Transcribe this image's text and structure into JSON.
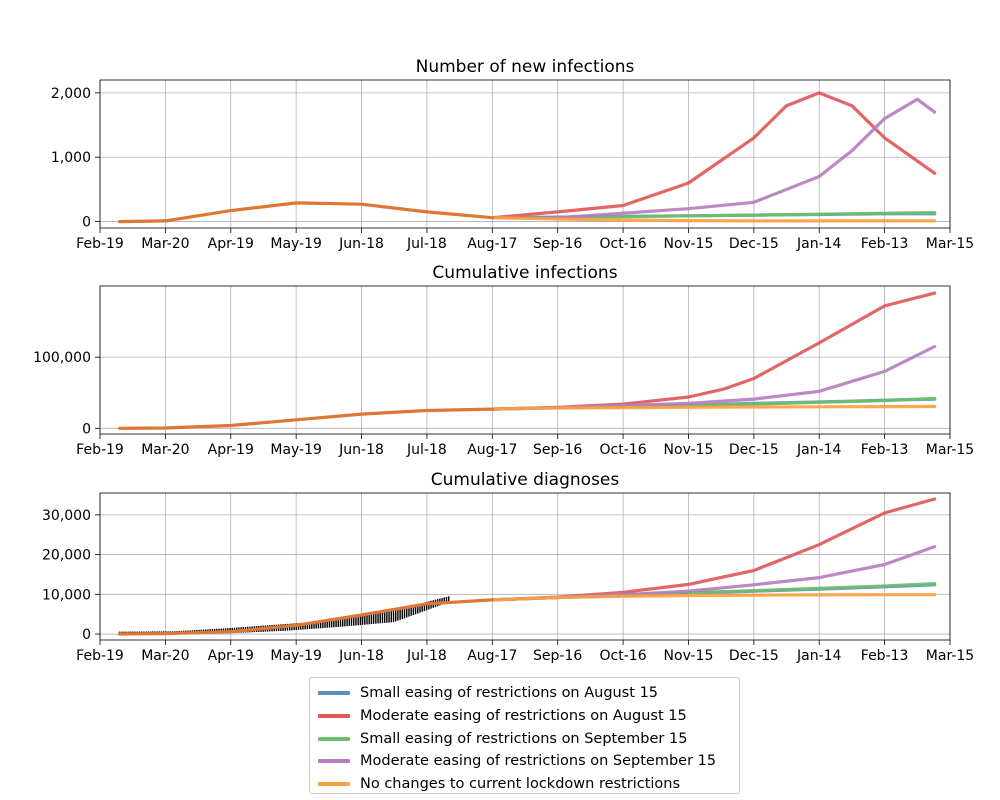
{
  "x_ticks": [
    "Feb-19",
    "Mar-20",
    "Apr-19",
    "May-19",
    "Jun-18",
    "Jul-18",
    "Aug-17",
    "Sep-16",
    "Oct-16",
    "Nov-15",
    "Dec-15",
    "Jan-14",
    "Feb-13",
    "Mar-15"
  ],
  "chart_data": [
    {
      "type": "line",
      "title": "Number of new infections",
      "xlabel": "",
      "ylabel": "",
      "x_range": [
        "Feb-19",
        "Mar-15"
      ],
      "ylim": [
        -100,
        2200
      ],
      "y_ticks": [
        0,
        1000,
        2000
      ],
      "y_tick_labels": [
        "0",
        "1,000",
        "2,000"
      ],
      "grid": true,
      "observed": {
        "x": [
          "Feb-28",
          "Mar-20",
          "Apr-19",
          "May-19",
          "Jun-18",
          "Jul-18",
          "Aug-17"
        ],
        "values": [
          0,
          10,
          170,
          290,
          270,
          150,
          60
        ]
      },
      "series": [
        {
          "name": "Small easing of restrictions on August 15",
          "color": "#5b8fc3",
          "x": [
            "Aug-17",
            "Sep-16",
            "Oct-16",
            "Nov-15",
            "Dec-15",
            "Jan-14",
            "Feb-13",
            "Mar-08"
          ],
          "values": [
            60,
            70,
            80,
            90,
            100,
            110,
            120,
            120
          ]
        },
        {
          "name": "Moderate easing of restrictions on August 15",
          "color": "#e05555",
          "x": [
            "Aug-17",
            "Sep-16",
            "Oct-16",
            "Nov-15",
            "Dec-15",
            "Dec-30",
            "Jan-14",
            "Jan-29",
            "Feb-13",
            "Mar-08"
          ],
          "values": [
            60,
            150,
            250,
            600,
            1300,
            1800,
            2000,
            1800,
            1300,
            750
          ]
        },
        {
          "name": "Small easing of restrictions on September 15",
          "color": "#6cbf6c",
          "x": [
            "Sep-16",
            "Oct-16",
            "Nov-15",
            "Dec-15",
            "Jan-14",
            "Feb-13",
            "Mar-08"
          ],
          "values": [
            50,
            75,
            90,
            100,
            115,
            130,
            140
          ]
        },
        {
          "name": "Moderate easing of restrictions on September 15",
          "color": "#b57cbf",
          "x": [
            "Sep-16",
            "Oct-16",
            "Nov-15",
            "Dec-15",
            "Jan-14",
            "Jan-29",
            "Feb-13",
            "Feb-28",
            "Mar-08"
          ],
          "values": [
            60,
            130,
            200,
            300,
            700,
            1100,
            1600,
            1900,
            1700
          ]
        },
        {
          "name": "No changes to current lockdown restrictions",
          "color": "#ff9f3f",
          "x": [
            "Aug-17",
            "Sep-16",
            "Oct-16",
            "Nov-15",
            "Dec-15",
            "Jan-14",
            "Feb-13",
            "Mar-08"
          ],
          "values": [
            60,
            40,
            25,
            15,
            10,
            10,
            10,
            10
          ]
        }
      ]
    },
    {
      "type": "line",
      "title": "Cumulative infections",
      "xlabel": "",
      "ylabel": "",
      "x_range": [
        "Feb-19",
        "Mar-15"
      ],
      "ylim": [
        -8000,
        200000
      ],
      "y_ticks": [
        0,
        100000
      ],
      "y_tick_labels": [
        "0",
        "100,000"
      ],
      "grid": true,
      "observed": {
        "x": [
          "Feb-28",
          "Mar-20",
          "Apr-19",
          "May-19",
          "Jun-18",
          "Jul-18",
          "Aug-17"
        ],
        "values": [
          0,
          500,
          4000,
          12000,
          20000,
          25000,
          27000
        ]
      },
      "series": [
        {
          "name": "Small easing of restrictions on August 15",
          "color": "#5b8fc3",
          "x": [
            "Aug-17",
            "Sep-16",
            "Oct-16",
            "Nov-15",
            "Dec-15",
            "Jan-14",
            "Feb-13",
            "Mar-08"
          ],
          "values": [
            27000,
            29000,
            30500,
            32500,
            35000,
            37000,
            39500,
            41000
          ]
        },
        {
          "name": "Moderate easing of restrictions on August 15",
          "color": "#e05555",
          "x": [
            "Aug-17",
            "Sep-16",
            "Oct-16",
            "Nov-15",
            "Dec-01",
            "Dec-15",
            "Jan-14",
            "Feb-13",
            "Mar-08"
          ],
          "values": [
            27000,
            29500,
            34000,
            44000,
            55000,
            70000,
            120000,
            172000,
            190000
          ]
        },
        {
          "name": "Small easing of restrictions on September 15",
          "color": "#6cbf6c",
          "x": [
            "Aug-17",
            "Sep-16",
            "Oct-16",
            "Nov-15",
            "Dec-15",
            "Jan-14",
            "Feb-13",
            "Mar-08"
          ],
          "values": [
            27000,
            29000,
            30500,
            32000,
            34000,
            36500,
            39000,
            42000
          ]
        },
        {
          "name": "Moderate easing of restrictions on September 15",
          "color": "#b57cbf",
          "x": [
            "Aug-17",
            "Sep-16",
            "Oct-16",
            "Nov-15",
            "Dec-15",
            "Jan-14",
            "Feb-13",
            "Mar-08"
          ],
          "values": [
            27000,
            29000,
            32000,
            35000,
            41000,
            52000,
            80000,
            115000
          ]
        },
        {
          "name": "No changes to current lockdown restrictions",
          "color": "#ff9f3f",
          "x": [
            "Aug-17",
            "Sep-16",
            "Oct-16",
            "Nov-15",
            "Dec-15",
            "Jan-14",
            "Feb-13",
            "Mar-08"
          ],
          "values": [
            27000,
            28500,
            29000,
            29500,
            30000,
            30200,
            30500,
            30600
          ]
        }
      ]
    },
    {
      "type": "line",
      "title": "Cumulative diagnoses",
      "xlabel": "",
      "ylabel": "",
      "x_range": [
        "Feb-19",
        "Mar-15"
      ],
      "ylim": [
        -1500,
        35500
      ],
      "y_ticks": [
        0,
        10000,
        20000,
        30000
      ],
      "y_tick_labels": [
        "0",
        "10,000",
        "20,000",
        "30,000"
      ],
      "grid": true,
      "observed_bars": {
        "x_start": "Feb-28",
        "x_end": "Jul-28",
        "low": [
          0,
          0,
          200,
          800,
          1800,
          3000,
          8000
        ],
        "high": [
          600,
          700,
          1500,
          2500,
          3500,
          6000,
          9500
        ]
      },
      "observed": {
        "x": [
          "Feb-28",
          "Mar-20",
          "Apr-19",
          "May-19",
          "Jun-18",
          "Jul-18",
          "Aug-17"
        ],
        "values": [
          0,
          100,
          600,
          2200,
          4800,
          7600,
          8600
        ]
      },
      "series": [
        {
          "name": "Small easing of restrictions on August 15",
          "color": "#5b8fc3",
          "x": [
            "Aug-17",
            "Sep-16",
            "Oct-16",
            "Nov-15",
            "Dec-15",
            "Jan-14",
            "Feb-13",
            "Mar-08"
          ],
          "values": [
            8600,
            9200,
            9800,
            10300,
            10800,
            11300,
            11900,
            12400
          ]
        },
        {
          "name": "Moderate easing of restrictions on August 15",
          "color": "#e05555",
          "x": [
            "Aug-17",
            "Sep-16",
            "Oct-16",
            "Nov-15",
            "Dec-15",
            "Jan-14",
            "Feb-13",
            "Mar-08"
          ],
          "values": [
            8600,
            9300,
            10500,
            12500,
            16000,
            22500,
            30500,
            34000
          ]
        },
        {
          "name": "Small easing of restrictions on September 15",
          "color": "#6cbf6c",
          "x": [
            "Aug-17",
            "Sep-16",
            "Oct-16",
            "Nov-15",
            "Dec-15",
            "Jan-14",
            "Feb-13",
            "Mar-08"
          ],
          "values": [
            8600,
            9200,
            9900,
            10400,
            10900,
            11500,
            12100,
            12700
          ]
        },
        {
          "name": "Moderate easing of restrictions on September 15",
          "color": "#b57cbf",
          "x": [
            "Aug-17",
            "Sep-16",
            "Oct-16",
            "Nov-15",
            "Dec-15",
            "Jan-14",
            "Feb-13",
            "Mar-08"
          ],
          "values": [
            8600,
            9200,
            9900,
            10800,
            12400,
            14200,
            17500,
            22000
          ]
        },
        {
          "name": "No changes to current lockdown restrictions",
          "color": "#ff9f3f",
          "x": [
            "Aug-17",
            "Sep-16",
            "Oct-16",
            "Nov-15",
            "Dec-15",
            "Jan-14",
            "Feb-13",
            "Mar-08"
          ],
          "values": [
            8600,
            9200,
            9500,
            9700,
            9800,
            9850,
            9900,
            9900
          ]
        }
      ]
    }
  ],
  "legend": {
    "placement": "bottom-center",
    "items": [
      {
        "label": "Small easing of restrictions on August 15",
        "color": "#5b8fc3"
      },
      {
        "label": "Moderate easing of restrictions on August 15",
        "color": "#e05555"
      },
      {
        "label": "Small easing of restrictions on September 15",
        "color": "#6cbf6c"
      },
      {
        "label": "Moderate easing of restrictions on September 15",
        "color": "#b57cbf"
      },
      {
        "label": "No changes to current lockdown restrictions",
        "color": "#ff9f3f"
      }
    ]
  },
  "observed_color": "#dd7733"
}
